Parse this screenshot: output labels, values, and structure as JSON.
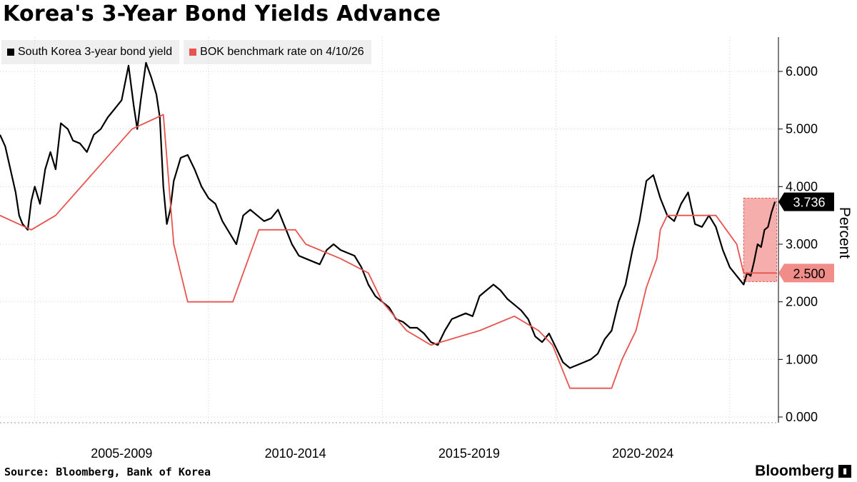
{
  "title": "Korea's 3-Year Bond Yields Advance",
  "source": "Source: Bloomberg, Bank of Korea",
  "brand": "Bloomberg",
  "chart_data": {
    "type": "line",
    "ylabel": "Percent",
    "ylim": [
      0,
      6.8
    ],
    "y_ticks": [
      "6.000",
      "5.000",
      "4.000",
      "3.000",
      "2.000",
      "1.000",
      "0.000"
    ],
    "y_tick_values": [
      6,
      5,
      4,
      3,
      2,
      1,
      0
    ],
    "x_tick_labels": [
      "2005-2009",
      "2010-2014",
      "2015-2019",
      "2020-2024"
    ],
    "x_range": [
      2004.0,
      2026.4
    ],
    "grid": true,
    "legend_position": "top-left",
    "highlight": {
      "x_start": 2025.4,
      "x_end": 2026.35,
      "y_start": 2.35,
      "y_end": 3.8,
      "color": "#f4a09d"
    },
    "last_value_labels": [
      {
        "text": "3.736",
        "value": 3.736,
        "series": "South Korea 3-year bond yield"
      },
      {
        "text": "2.500",
        "value": 2.5,
        "series": "BOK benchmark rate on 4/10/26"
      }
    ],
    "series": [
      {
        "name": "South Korea 3-year bond yield",
        "color": "#000000",
        "x": [
          2004.0,
          2004.15,
          2004.3,
          2004.45,
          2004.55,
          2004.65,
          2004.8,
          2004.9,
          2005.0,
          2005.15,
          2005.3,
          2005.45,
          2005.6,
          2005.75,
          2005.95,
          2006.1,
          2006.3,
          2006.5,
          2006.7,
          2006.9,
          2007.1,
          2007.3,
          2007.5,
          2007.7,
          2007.85,
          2007.95,
          2008.05,
          2008.2,
          2008.35,
          2008.5,
          2008.6,
          2008.7,
          2008.8,
          2008.9,
          2009.0,
          2009.1,
          2009.2,
          2009.4,
          2009.6,
          2009.8,
          2010.0,
          2010.2,
          2010.4,
          2010.6,
          2010.8,
          2011.0,
          2011.2,
          2011.4,
          2011.6,
          2011.8,
          2012.0,
          2012.2,
          2012.4,
          2012.6,
          2012.8,
          2013.0,
          2013.2,
          2013.4,
          2013.6,
          2013.8,
          2014.0,
          2014.2,
          2014.4,
          2014.6,
          2014.8,
          2015.0,
          2015.2,
          2015.4,
          2015.6,
          2015.8,
          2016.0,
          2016.2,
          2016.4,
          2016.6,
          2016.8,
          2017.0,
          2017.2,
          2017.4,
          2017.6,
          2017.8,
          2018.0,
          2018.2,
          2018.4,
          2018.6,
          2018.8,
          2019.0,
          2019.2,
          2019.4,
          2019.6,
          2019.8,
          2020.0,
          2020.2,
          2020.4,
          2020.6,
          2020.8,
          2021.0,
          2021.2,
          2021.4,
          2021.6,
          2021.8,
          2022.0,
          2022.2,
          2022.4,
          2022.6,
          2022.8,
          2023.0,
          2023.2,
          2023.4,
          2023.6,
          2023.8,
          2024.0,
          2024.2,
          2024.4,
          2024.6,
          2024.8,
          2025.0,
          2025.2,
          2025.4,
          2025.5,
          2025.6,
          2025.7,
          2025.8,
          2025.9,
          2026.0,
          2026.1,
          2026.2,
          2026.3
        ],
        "values": [
          4.9,
          4.7,
          4.3,
          3.9,
          3.5,
          3.35,
          3.25,
          3.75,
          4.0,
          3.7,
          4.3,
          4.6,
          4.3,
          5.1,
          5.0,
          4.8,
          4.75,
          4.6,
          4.9,
          5.0,
          5.2,
          5.35,
          5.5,
          6.1,
          5.4,
          5.0,
          5.5,
          6.15,
          5.9,
          5.6,
          5.2,
          4.0,
          3.35,
          3.6,
          4.1,
          4.3,
          4.5,
          4.55,
          4.3,
          4.0,
          3.8,
          3.7,
          3.4,
          3.2,
          3.0,
          3.5,
          3.6,
          3.5,
          3.4,
          3.45,
          3.6,
          3.3,
          3.0,
          2.8,
          2.75,
          2.7,
          2.65,
          2.9,
          3.0,
          2.9,
          2.85,
          2.8,
          2.6,
          2.3,
          2.1,
          2.0,
          1.9,
          1.7,
          1.65,
          1.55,
          1.55,
          1.45,
          1.3,
          1.25,
          1.5,
          1.7,
          1.75,
          1.8,
          1.75,
          2.1,
          2.2,
          2.3,
          2.2,
          2.05,
          1.95,
          1.85,
          1.7,
          1.4,
          1.3,
          1.45,
          1.2,
          0.95,
          0.85,
          0.9,
          0.95,
          1.0,
          1.1,
          1.35,
          1.5,
          2.0,
          2.3,
          2.9,
          3.4,
          4.1,
          4.2,
          3.8,
          3.5,
          3.4,
          3.7,
          3.9,
          3.35,
          3.3,
          3.5,
          3.3,
          2.9,
          2.6,
          2.45,
          2.3,
          2.5,
          2.45,
          2.7,
          3.0,
          2.95,
          3.25,
          3.3,
          3.55,
          3.736
        ]
      },
      {
        "name": "BOK benchmark rate on 4/10/26",
        "color": "#e8534f",
        "x": [
          2004.0,
          2004.9,
          2005.6,
          2007.8,
          2008.7,
          2009.0,
          2009.4,
          2010.7,
          2011.0,
          2011.3,
          2011.45,
          2012.5,
          2012.8,
          2013.8,
          2014.6,
          2015.0,
          2015.7,
          2016.4,
          2017.8,
          2018.8,
          2019.5,
          2019.9,
          2020.4,
          2021.6,
          2021.9,
          2022.3,
          2022.6,
          2022.9,
          2023.0,
          2023.2,
          2024.6,
          2024.9,
          2025.2,
          2025.4,
          2026.35
        ],
        "values": [
          3.5,
          3.25,
          3.5,
          5.0,
          5.25,
          3.0,
          2.0,
          2.0,
          2.5,
          3.0,
          3.25,
          3.25,
          3.0,
          2.75,
          2.5,
          2.0,
          1.5,
          1.25,
          1.5,
          1.75,
          1.5,
          1.25,
          0.5,
          0.5,
          1.0,
          1.5,
          2.25,
          2.75,
          3.25,
          3.5,
          3.5,
          3.25,
          3.0,
          2.5,
          2.5
        ]
      }
    ]
  },
  "legend": [
    {
      "label": "South Korea 3-year bond yield",
      "color": "#000000"
    },
    {
      "label": "BOK benchmark rate on 4/10/26",
      "color": "#e8534f"
    }
  ]
}
